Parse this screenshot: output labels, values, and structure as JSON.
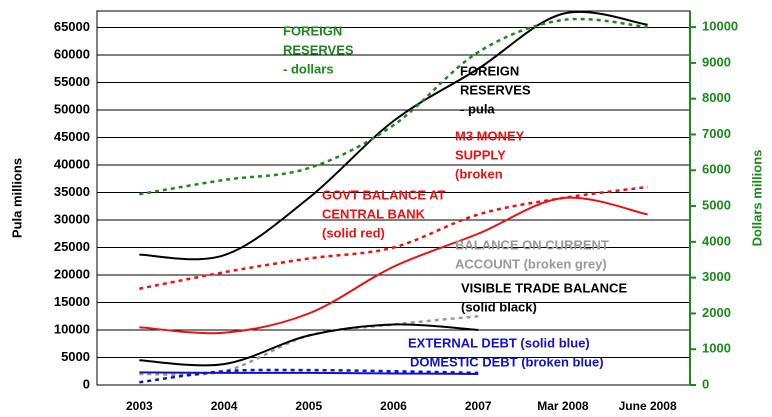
{
  "chart_data": {
    "type": "line",
    "categories": [
      "2003",
      "2004",
      "2005",
      "2006",
      "2007",
      "Mar 2008",
      "June 2008"
    ],
    "ylabel": "Pula millions",
    "y2label": "Dollars millions",
    "ylim": [
      0,
      68000
    ],
    "yticks": [
      0,
      5000,
      10000,
      15000,
      20000,
      25000,
      30000,
      35000,
      40000,
      45000,
      50000,
      55000,
      60000,
      65000
    ],
    "y2lim": [
      0,
      10450
    ],
    "y2ticks": [
      0,
      1000,
      2000,
      3000,
      4000,
      5000,
      6000,
      7000,
      8000,
      9000,
      10000
    ],
    "y2color": "#1a8a1a",
    "grid": true,
    "series": [
      {
        "color": "#000000",
        "dash": false,
        "values": [
          23700,
          23600,
          34000,
          48000,
          57500,
          67500,
          65500
        ]
      },
      {
        "color": "#1a8a1a",
        "dash": true,
        "axis": "y2",
        "values": [
          5330,
          5730,
          6060,
          7260,
          9300,
          10200,
          10000
        ]
      },
      {
        "color": "#ee1111",
        "dash": true,
        "values": [
          17500,
          20500,
          23000,
          25000,
          31000,
          34000,
          36000
        ]
      },
      {
        "color": "#ee1111",
        "dash": false,
        "values": [
          10500,
          9500,
          13000,
          21500,
          27500,
          34000,
          31000
        ]
      },
      {
        "color": "#999999",
        "dash": true,
        "values": [
          2000,
          2500,
          9000,
          11000,
          12500,
          null,
          null
        ]
      },
      {
        "color": "#000000",
        "dash": false,
        "values": [
          4500,
          3800,
          9000,
          11000,
          10000,
          null,
          null
        ]
      },
      {
        "color": "#1111cc",
        "dash": false,
        "values": [
          2300,
          2200,
          2200,
          2100,
          2000,
          null,
          null
        ]
      },
      {
        "color": "#1111cc",
        "dash": true,
        "values": [
          500,
          2500,
          2700,
          2500,
          2200,
          null,
          null
        ]
      }
    ],
    "annotations": [
      {
        "color": "#1a8a1a",
        "lines": [
          "FOREIGN",
          "RESERVES",
          "- dollars"
        ]
      },
      {
        "color": "#000000",
        "lines": [
          "FOREIGN",
          "RESERVES",
          "- pula"
        ]
      },
      {
        "color": "#ee1111",
        "lines": [
          "M3 MONEY",
          "SUPPLY",
          "(broken"
        ]
      },
      {
        "color": "#ee1111",
        "lines": [
          "GOVT BALANCE AT",
          "CENTRAL BANK",
          "(solid red)"
        ]
      },
      {
        "color": "#999999",
        "lines": [
          "BALANCE ON CURRENT",
          "ACCOUNT (broken grey)"
        ]
      },
      {
        "color": "#000000",
        "lines": [
          "VISIBLE TRADE BALANCE",
          "(solid black)"
        ]
      },
      {
        "color": "#1111cc",
        "lines": [
          "EXTERNAL DEBT (solid blue)"
        ]
      },
      {
        "color": "#1111cc",
        "lines": [
          "DOMESTIC DEBT (broken blue)"
        ]
      }
    ]
  }
}
